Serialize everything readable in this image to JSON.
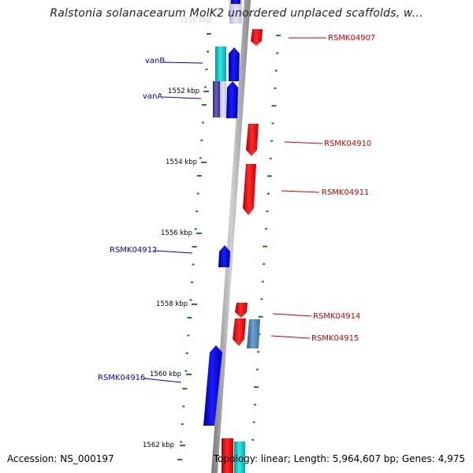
{
  "title": "Ralstonia solanacearum MolK2 unordered unplaced scaffolds, w...",
  "footer": {
    "accession": "Accession: NS_000197",
    "topology": "Topology: linear; Length: 5,964,607 bp; Genes: 4,975"
  },
  "colors": {
    "forward_gene": "#ff0000",
    "reverse_gene": "#0000dd",
    "cyan_gene": "#00cccc",
    "steel_gene": "#4682b4",
    "purple_gene": "#4b3f99",
    "backbone": "#999999",
    "tick": "#2a7a2a",
    "left_label": "#0000cc",
    "right_label": "#cc0000"
  },
  "kbp_labels": [
    "1552 kbp",
    "1554 kbp",
    "1556 kbp",
    "1558 kbp",
    "1560 kbp",
    "1562 kbp"
  ],
  "left_labels": [
    {
      "id": "vanB",
      "text": "vanB"
    },
    {
      "id": "vanA",
      "text": "vanA"
    },
    {
      "id": "RSMK04912",
      "text": "RSMK04912"
    },
    {
      "id": "RSMK04916",
      "text": "RSMK04916"
    }
  ],
  "right_labels": [
    {
      "id": "RSMK04907",
      "text": "RSMK04907"
    },
    {
      "id": "RSMK04910",
      "text": "RSMK04910"
    },
    {
      "id": "RSMK04911",
      "text": "RSMK04911"
    },
    {
      "id": "RSMK04914",
      "text": "RSMK04914"
    },
    {
      "id": "RSMK04915",
      "text": "RSMK04915"
    }
  ],
  "top_faded_label": "1550 kbp"
}
